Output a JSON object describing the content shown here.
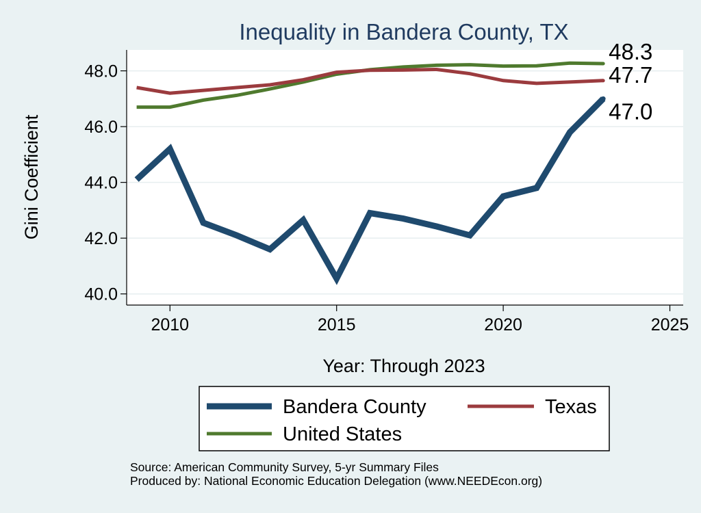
{
  "chart_data": {
    "type": "line",
    "title": "Inequality in Bandera County, TX",
    "xlabel": "Year: Through 2023",
    "ylabel": "Gini Coefficient",
    "xlim": [
      2008.7,
      2025.4
    ],
    "ylim": [
      39.6,
      48.75
    ],
    "xticks": [
      2010,
      2015,
      2020,
      2025
    ],
    "yticks": [
      40.0,
      42.0,
      44.0,
      46.0,
      48.0
    ],
    "ytick_labels": [
      "40.0",
      "42.0",
      "44.0",
      "46.0",
      "48.0"
    ],
    "grid": true,
    "legend_position": "bottom",
    "x": [
      2009,
      2010,
      2011,
      2012,
      2013,
      2014,
      2015,
      2016,
      2017,
      2018,
      2019,
      2020,
      2021,
      2022,
      2023
    ],
    "series": [
      {
        "name": "Bandera County",
        "color": "#1f4a6e",
        "values": [
          44.1,
          45.2,
          42.55,
          42.1,
          41.6,
          42.65,
          40.55,
          42.9,
          42.7,
          42.42,
          42.1,
          43.5,
          43.8,
          45.8,
          47.0
        ],
        "end_label": "47.0"
      },
      {
        "name": "Texas",
        "color": "#9b3b3e",
        "values": [
          47.4,
          47.2,
          47.3,
          47.4,
          47.5,
          47.68,
          47.95,
          48.02,
          48.03,
          48.05,
          47.9,
          47.65,
          47.55,
          47.6,
          47.65
        ],
        "end_label": "47.7"
      },
      {
        "name": "United States",
        "color": "#4f7a2e",
        "values": [
          46.7,
          46.7,
          46.95,
          47.12,
          47.35,
          47.6,
          47.88,
          48.04,
          48.14,
          48.2,
          48.22,
          48.17,
          48.18,
          48.28,
          48.26
        ],
        "end_label": "48.3"
      }
    ],
    "notes": [
      "Source: American Community Survey, 5-yr Summary Files",
      "Produced by: National Economic Education Delegation (www.NEEDEcon.org)"
    ]
  }
}
